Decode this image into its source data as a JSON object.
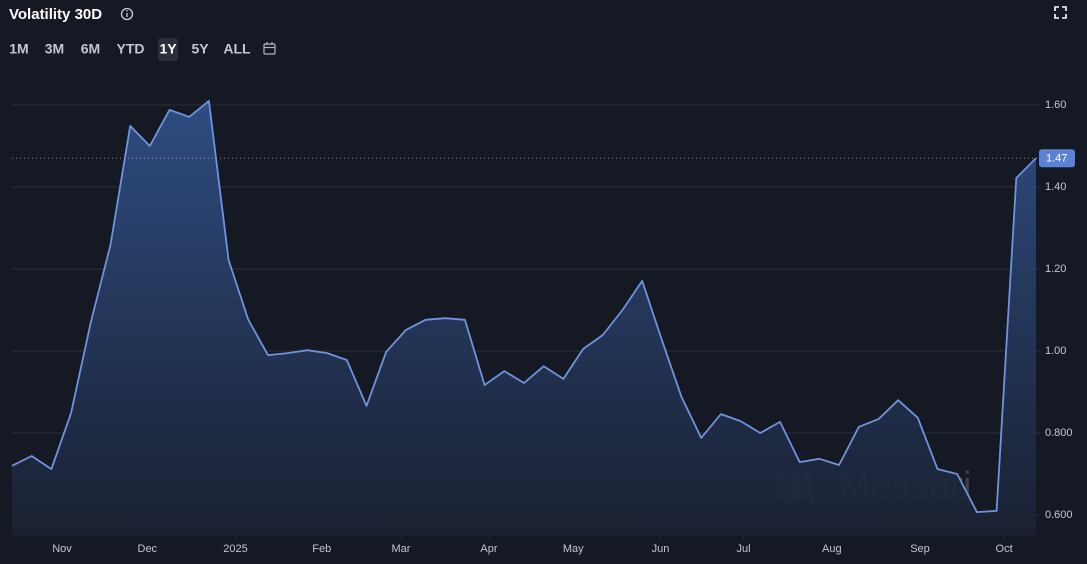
{
  "header": {
    "title": "Volatility 30D",
    "ranges": [
      "1M",
      "3M",
      "6M",
      "YTD",
      "1Y",
      "5Y",
      "ALL"
    ],
    "selected_range": 4
  },
  "chart_data": {
    "type": "line",
    "color": "#6f93dc",
    "watermark": "Messari",
    "x": [
      0,
      1,
      2,
      3,
      4,
      5,
      6,
      7,
      8,
      9,
      10,
      11,
      12,
      13,
      14,
      15,
      16,
      17,
      18,
      19,
      20,
      21,
      22,
      23,
      24,
      25,
      26,
      27,
      28,
      29,
      30,
      31,
      32,
      33,
      34,
      35,
      36,
      37,
      38,
      39,
      40,
      41,
      42,
      43,
      44,
      45,
      46,
      47,
      48,
      49,
      50,
      51,
      52
    ],
    "values": [
      0.72,
      0.744,
      0.712,
      0.849,
      1.07,
      1.259,
      1.549,
      1.5,
      1.588,
      1.571,
      1.61,
      1.222,
      1.076,
      0.99,
      0.995,
      1.002,
      0.995,
      0.978,
      0.866,
      0.998,
      1.051,
      1.076,
      1.08,
      1.076,
      0.917,
      0.951,
      0.922,
      0.963,
      0.932,
      1.005,
      1.039,
      1.1,
      1.171,
      1.027,
      0.888,
      0.788,
      0.846,
      0.829,
      0.8,
      0.827,
      0.729,
      0.737,
      0.722,
      0.815,
      0.834,
      0.88,
      0.837,
      0.712,
      0.7,
      0.607,
      0.61,
      1.422,
      1.47
    ],
    "current_value": 1.47,
    "xlim": [
      0,
      52
    ],
    "xticks": [
      {
        "value": 2.54,
        "label": "Nov"
      },
      {
        "value": 6.87,
        "label": "Dec"
      },
      {
        "value": 11.35,
        "label": "2025"
      },
      {
        "value": 15.73,
        "label": "Feb"
      },
      {
        "value": 19.75,
        "label": "Mar"
      },
      {
        "value": 24.22,
        "label": "Apr"
      },
      {
        "value": 28.5,
        "label": "May"
      },
      {
        "value": 32.93,
        "label": "Jun"
      },
      {
        "value": 37.15,
        "label": "Jul"
      },
      {
        "value": 41.63,
        "label": "Aug"
      },
      {
        "value": 46.11,
        "label": "Sep"
      },
      {
        "value": 50.38,
        "label": "Oct"
      }
    ],
    "ylim": [
      0.55,
      1.65
    ],
    "yticks": [
      {
        "value": 0.6,
        "label": "0.600"
      },
      {
        "value": 0.8,
        "label": "0.800"
      },
      {
        "value": 1.0,
        "label": "1.00"
      },
      {
        "value": 1.2,
        "label": "1.20"
      },
      {
        "value": 1.4,
        "label": "1.40"
      },
      {
        "value": 1.6,
        "label": "1.60"
      }
    ],
    "grid": true
  }
}
